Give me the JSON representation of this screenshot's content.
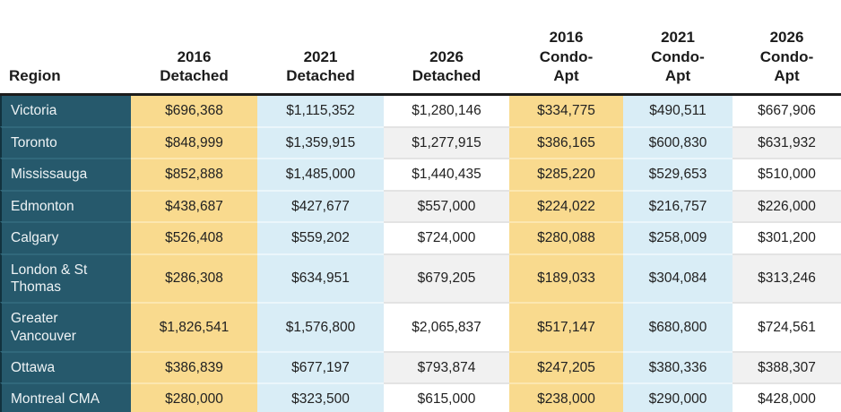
{
  "colors": {
    "region_bg": "#26596c",
    "region_border": "#12323e",
    "yellow": "#f9da8e",
    "blue": "#d9edf6",
    "white_stripe": "#f1f1f1",
    "header_line": "#1c1c1c",
    "header_text": "#1b1b1b",
    "cell_text": "#212121",
    "region_text": "#eef3f5"
  },
  "table": {
    "columns": [
      {
        "label": "Region"
      },
      {
        "label": "2016\nDetached"
      },
      {
        "label": "2021\nDetached"
      },
      {
        "label": "2026\nDetached"
      },
      {
        "label": "2016\nCondo-\nApt"
      },
      {
        "label": "2021\nCondo-\nApt"
      },
      {
        "label": "2026\nCondo-\nApt"
      }
    ],
    "rows": [
      {
        "region": "Victoria",
        "values": [
          "$696,368",
          "$1,115,352",
          "$1,280,146",
          "$334,775",
          "$490,511",
          "$667,906"
        ]
      },
      {
        "region": "Toronto",
        "values": [
          "$848,999",
          "$1,359,915",
          "$1,277,915",
          "$386,165",
          "$600,830",
          "$631,932"
        ]
      },
      {
        "region": "Mississauga",
        "values": [
          "$852,888",
          "$1,485,000",
          "$1,440,435",
          "$285,220",
          "$529,653",
          "$510,000"
        ]
      },
      {
        "region": "Edmonton",
        "values": [
          "$438,687",
          "$427,677",
          "$557,000",
          "$224,022",
          "$216,757",
          "$226,000"
        ]
      },
      {
        "region": "Calgary",
        "values": [
          "$526,408",
          "$559,202",
          "$724,000",
          "$280,088",
          "$258,009",
          "$301,200"
        ]
      },
      {
        "region": "London & St Thomas",
        "values": [
          "$286,308",
          "$634,951",
          "$679,205",
          "$189,033",
          "$304,084",
          "$313,246"
        ]
      },
      {
        "region": "Greater Vancouver",
        "values": [
          "$1,826,541",
          "$1,576,800",
          "$2,065,837",
          "$517,147",
          "$680,800",
          "$724,561"
        ]
      },
      {
        "region": "Ottawa",
        "values": [
          "$386,839",
          "$677,197",
          "$793,874",
          "$247,205",
          "$380,336",
          "$388,307"
        ]
      },
      {
        "region": "Montreal CMA",
        "values": [
          "$280,000",
          "$323,500",
          "$615,000",
          "$238,000",
          "$290,000",
          "$428,000"
        ]
      }
    ]
  },
  "chart_data": {
    "type": "table",
    "title": "",
    "columns": [
      "Region",
      "2016 Detached",
      "2021 Detached",
      "2026 Detached",
      "2016 Condo-Apt",
      "2021 Condo-Apt",
      "2026 Condo-Apt"
    ],
    "rows": [
      [
        "Victoria",
        696368,
        1115352,
        1280146,
        334775,
        490511,
        667906
      ],
      [
        "Toronto",
        848999,
        1359915,
        1277915,
        386165,
        600830,
        631932
      ],
      [
        "Mississauga",
        852888,
        1485000,
        1440435,
        285220,
        529653,
        510000
      ],
      [
        "Edmonton",
        438687,
        427677,
        557000,
        224022,
        216757,
        226000
      ],
      [
        "Calgary",
        526408,
        559202,
        724000,
        280088,
        258009,
        301200
      ],
      [
        "London & St Thomas",
        286308,
        634951,
        679205,
        189033,
        304084,
        313246
      ],
      [
        "Greater Vancouver",
        1826541,
        1576800,
        2065837,
        517147,
        680800,
        724561
      ],
      [
        "Ottawa",
        386839,
        677197,
        793874,
        247205,
        380336,
        388307
      ],
      [
        "Montreal CMA",
        280000,
        323500,
        615000,
        238000,
        290000,
        428000
      ]
    ]
  }
}
